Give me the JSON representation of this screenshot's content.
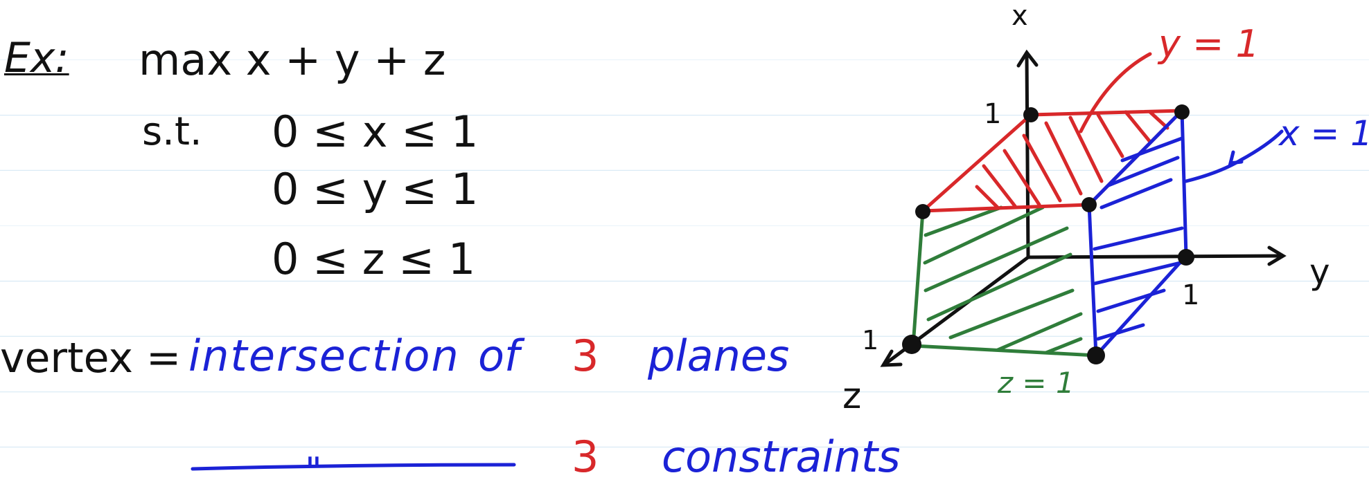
{
  "problem": {
    "label": "Ex:",
    "objective": "max  x + y + z",
    "subject_to": "s.t.",
    "constraints": [
      "0 ≤ x ≤ 1",
      "0 ≤ y ≤ 1",
      "0 ≤ z ≤ 1"
    ]
  },
  "definition": {
    "term": "vertex =",
    "phrase1": "intersection",
    "phrase2": "of",
    "count1": "3",
    "word1": "planes",
    "count2": "3",
    "word2": "constraints",
    "ditto": "\""
  },
  "diagram": {
    "axis_x": "x",
    "axis_y": "y",
    "axis_z": "z",
    "tick_x": "1",
    "tick_y": "1",
    "tick_z": "1",
    "plane_y": "y = 1",
    "plane_x": "x = 1",
    "plane_z": "z = 1"
  },
  "colors": {
    "ink": "#111111",
    "red": "#d8282a",
    "blue": "#1b22d6",
    "green": "#2f7d3a",
    "rule": "#d7e9f5"
  }
}
